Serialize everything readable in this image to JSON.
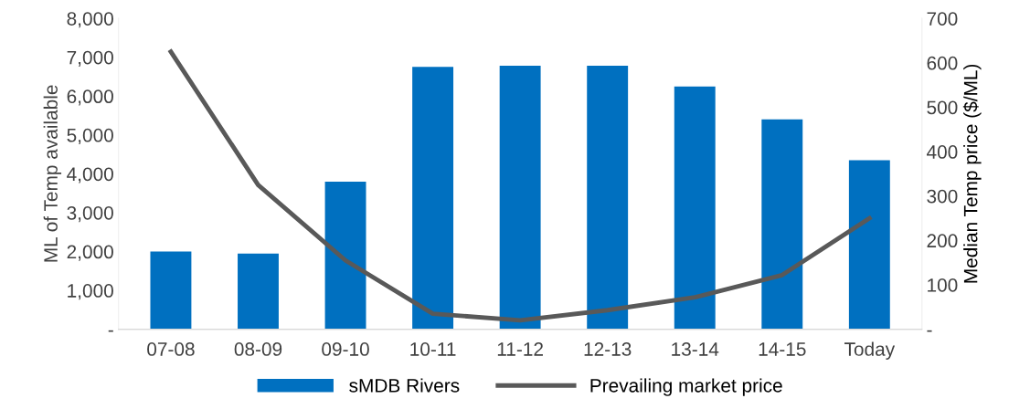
{
  "chart_data": {
    "type": "bar",
    "categories": [
      "07-08",
      "08-09",
      "09-10",
      "10-11",
      "11-12",
      "12-13",
      "13-14",
      "14-15",
      "Today"
    ],
    "series": [
      {
        "name": "sMDB Rivers",
        "color": "#0070c0",
        "values": [
          2000,
          1950,
          3800,
          6750,
          6780,
          6780,
          6250,
          5400,
          4350
        ]
      },
      {
        "name": "Prevailing market price",
        "type": "line",
        "axis": "y2",
        "color": "#595959",
        "values": [
          625,
          325,
          155,
          35,
          20,
          43,
          72,
          122,
          250
        ]
      }
    ],
    "ylabel": "ML of Temp available",
    "y2label": "Median Temp price ($/ML)",
    "ylim": [
      0,
      8000
    ],
    "yticks": [
      {
        "value": 0,
        "label": "-"
      },
      {
        "value": 1000,
        "label": "1,000"
      },
      {
        "value": 2000,
        "label": "2,000"
      },
      {
        "value": 3000,
        "label": "3,000"
      },
      {
        "value": 4000,
        "label": "4,000"
      },
      {
        "value": 5000,
        "label": "5,000"
      },
      {
        "value": 6000,
        "label": "6,000"
      },
      {
        "value": 7000,
        "label": "7,000"
      },
      {
        "value": 8000,
        "label": "8,000"
      }
    ],
    "y2lim": [
      0,
      700
    ],
    "y2ticks": [
      {
        "value": 0,
        "label": "-"
      },
      100,
      200,
      300,
      400,
      500,
      600,
      700
    ],
    "legend": "bottom",
    "grid": false,
    "marker": "none",
    "line_style": "solid"
  }
}
